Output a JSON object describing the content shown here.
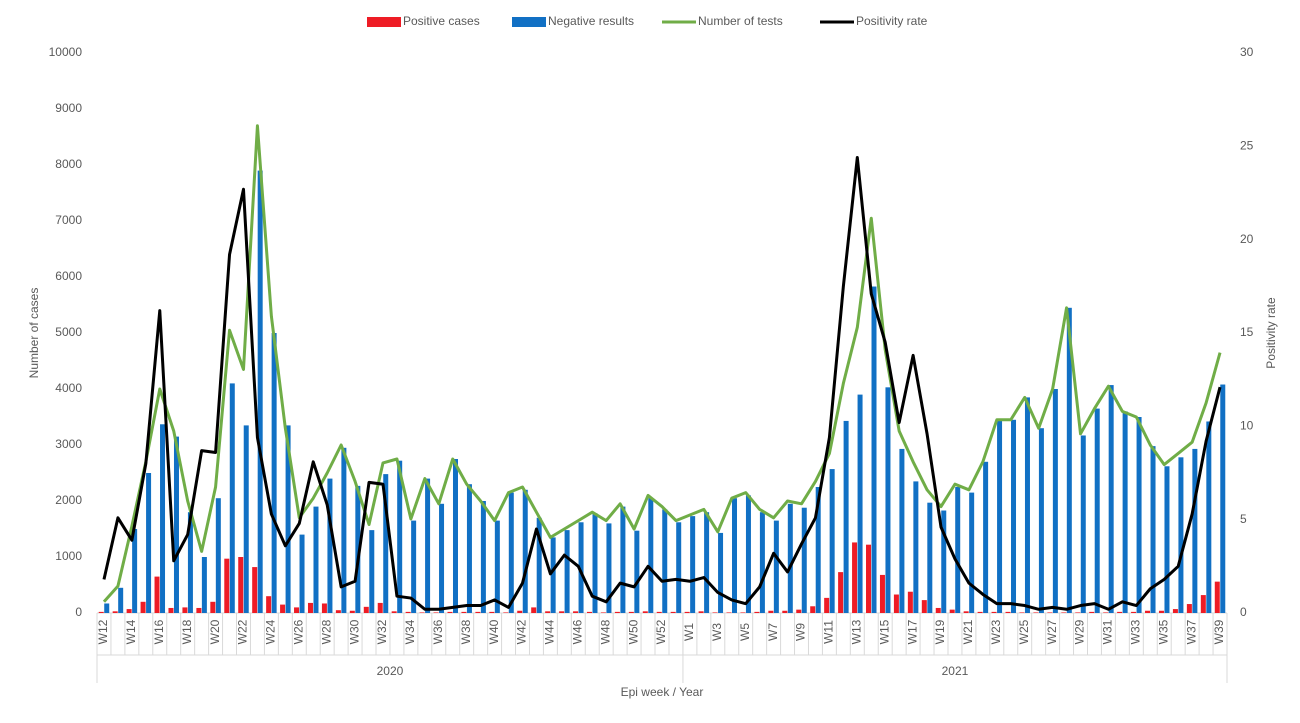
{
  "chart_data": {
    "type": "combo",
    "x_label": "Epi week / Year",
    "y_label": "Number of cases",
    "y2_label": "Positivity rate",
    "ylim": [
      0,
      10000
    ],
    "yticks": [
      0,
      1000,
      2000,
      3000,
      4000,
      5000,
      6000,
      7000,
      8000,
      9000,
      10000
    ],
    "y2lim": [
      0,
      30
    ],
    "y2ticks": [
      0,
      5,
      10,
      15,
      20,
      25,
      30
    ],
    "legend": "top",
    "groups": [
      {
        "label": "2020",
        "span": 42
      },
      {
        "label": "2021",
        "span": 39
      }
    ],
    "categories": [
      "W12",
      null,
      "W14",
      null,
      "W16",
      null,
      "W18",
      null,
      "W20",
      null,
      "W22",
      null,
      "W24",
      null,
      "W26",
      null,
      "W28",
      null,
      "W30",
      null,
      "W32",
      null,
      "W34",
      null,
      "W36",
      null,
      "W38",
      null,
      "W40",
      null,
      "W42",
      null,
      "W44",
      null,
      "W46",
      null,
      "W48",
      null,
      "W50",
      null,
      "W52",
      null,
      "W1",
      null,
      "W3",
      null,
      "W5",
      null,
      "W7",
      null,
      "W9",
      null,
      "W11",
      null,
      "W13",
      null,
      "W15",
      null,
      "W17",
      null,
      "W19",
      null,
      "W21",
      null,
      "W23",
      null,
      "W25",
      null,
      "W27",
      null,
      "W29",
      null,
      "W31",
      null,
      "W33",
      null,
      "W35",
      null,
      "W37",
      null,
      "W39"
    ],
    "series": [
      {
        "name": "Positive cases",
        "type": "bar",
        "color": "#ee1c25",
        "values": [
          20,
          30,
          70,
          200,
          650,
          90,
          100,
          90,
          200,
          970,
          1000,
          820,
          300,
          150,
          100,
          180,
          170,
          50,
          40,
          110,
          180,
          30,
          20,
          10,
          10,
          20,
          20,
          20,
          20,
          10,
          40,
          100,
          30,
          30,
          30,
          20,
          10,
          20,
          20,
          30,
          20,
          20,
          20,
          30,
          10,
          10,
          10,
          20,
          40,
          40,
          60,
          120,
          270,
          730,
          1260,
          1220,
          680,
          330,
          380,
          230,
          90,
          60,
          30,
          20,
          20,
          20,
          10,
          10,
          10,
          10,
          10,
          20,
          10,
          20,
          20,
          40,
          40,
          70,
          160,
          320,
          560
        ]
      },
      {
        "name": "Negative results",
        "type": "bar",
        "color": "#1170c4",
        "values": [
          170,
          450,
          1500,
          2500,
          3370,
          3150,
          1800,
          1000,
          2050,
          4100,
          3350,
          7900,
          5000,
          3350,
          1400,
          1900,
          2400,
          2950,
          2270,
          1480,
          2480,
          2720,
          1650,
          2400,
          1950,
          2750,
          2300,
          2000,
          1650,
          2150,
          2200,
          1700,
          1350,
          1480,
          1620,
          1780,
          1600,
          1900,
          1470,
          2050,
          1850,
          1620,
          1730,
          1800,
          1430,
          2050,
          2100,
          1800,
          1650,
          1950,
          1880,
          2250,
          2570,
          3430,
          3900,
          5830,
          4030,
          2930,
          2350,
          1970,
          1830,
          2250,
          2150,
          2700,
          3450,
          3450,
          3850,
          3300,
          4000,
          5450,
          3170,
          3650,
          4070,
          3600,
          3500,
          2980,
          2620,
          2780,
          2930,
          3420,
          4080
        ]
      },
      {
        "name": "Number of tests",
        "type": "line",
        "color": "#70ad47",
        "values": [
          200,
          480,
          1550,
          2700,
          4000,
          3250,
          2000,
          1100,
          2250,
          5050,
          4350,
          8700,
          5300,
          3300,
          1700,
          2050,
          2500,
          3000,
          2350,
          1580,
          2680,
          2750,
          1680,
          2400,
          1950,
          2750,
          2300,
          2000,
          1650,
          2150,
          2250,
          1800,
          1350,
          1500,
          1650,
          1800,
          1650,
          1950,
          1500,
          2100,
          1900,
          1650,
          1750,
          1850,
          1450,
          2050,
          2150,
          1850,
          1700,
          2000,
          1950,
          2350,
          2850,
          4100,
          5100,
          7050,
          4700,
          3250,
          2700,
          2200,
          1900,
          2300,
          2200,
          2700,
          3450,
          3450,
          3850,
          3300,
          4000,
          5450,
          3200,
          3650,
          4050,
          3600,
          3500,
          3000,
          2650,
          2850,
          3050,
          3750,
          4650
        ]
      },
      {
        "name": "Positivity rate",
        "type": "line",
        "axis": "y2",
        "color": "#000000",
        "values": [
          1.8,
          5.1,
          3.9,
          8,
          16.2,
          2.8,
          4.2,
          8.7,
          8.6,
          19.2,
          22.7,
          9.4,
          5.3,
          3.6,
          4.8,
          8.1,
          5.8,
          1.4,
          1.7,
          7.0,
          6.9,
          0.9,
          0.8,
          0.2,
          0.2,
          0.3,
          0.4,
          0.4,
          0.7,
          0.3,
          1.6,
          4.5,
          2.1,
          3.1,
          2.5,
          0.9,
          0.6,
          1.6,
          1.4,
          2.5,
          1.7,
          1.8,
          1.7,
          1.9,
          1.1,
          0.7,
          0.5,
          1.4,
          3.2,
          2.2,
          3.7,
          5.1,
          9.4,
          17.5,
          24.4,
          17.1,
          14.5,
          10.2,
          13.8,
          9.6,
          4.6,
          2.9,
          1.6,
          1.0,
          0.5,
          0.5,
          0.4,
          0.2,
          0.3,
          0.2,
          0.4,
          0.5,
          0.2,
          0.6,
          0.4,
          1.3,
          1.8,
          2.5,
          5.3,
          9.2,
          12.1
        ]
      }
    ]
  }
}
